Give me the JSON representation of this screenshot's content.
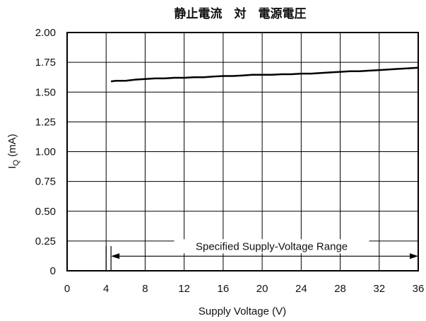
{
  "chart_data": {
    "type": "line",
    "title": "静止電流　対　電源電圧",
    "xlabel": "Supply Voltage (V)",
    "ylabel_main": "I",
    "ylabel_sub": "Q",
    "ylabel_unit": " (mA)",
    "xlim": [
      0,
      36
    ],
    "ylim": [
      0,
      2.0
    ],
    "x_ticks": [
      0,
      4,
      8,
      12,
      16,
      20,
      24,
      28,
      32,
      36
    ],
    "x_tick_labels": [
      "0",
      "4",
      "8",
      "12",
      "16",
      "20",
      "24",
      "28",
      "32",
      "36"
    ],
    "y_ticks": [
      0,
      0.25,
      0.5,
      0.75,
      1.0,
      1.25,
      1.5,
      1.75,
      2.0
    ],
    "y_tick_labels": [
      "0",
      "0.25",
      "0.50",
      "0.75",
      "1.00",
      "1.25",
      "1.50",
      "1.75",
      "2.00"
    ],
    "grid": true,
    "series": [
      {
        "x": [
          4.5,
          5.0,
          6.0,
          7.0,
          8.0,
          9.0,
          10.0,
          11.0,
          12.0,
          13.0,
          14.0,
          15.0,
          16.0,
          17.0,
          18.0,
          19.0,
          20.0,
          21.0,
          22.0,
          23.0,
          24.0,
          25.0,
          26.0,
          27.0,
          28.0,
          29.0,
          30.0,
          31.0,
          32.0,
          33.0,
          34.0,
          35.0,
          36.0
        ],
        "values": [
          1.59,
          1.595,
          1.595,
          1.605,
          1.61,
          1.615,
          1.615,
          1.62,
          1.62,
          1.625,
          1.625,
          1.63,
          1.635,
          1.635,
          1.64,
          1.645,
          1.645,
          1.645,
          1.65,
          1.65,
          1.655,
          1.655,
          1.66,
          1.665,
          1.67,
          1.675,
          1.675,
          1.68,
          1.685,
          1.69,
          1.695,
          1.7,
          1.705
        ]
      }
    ],
    "annotation": {
      "text": "Specified Supply-Voltage Range",
      "x_start": 4.5,
      "x_end": 36,
      "y": 0.2
    },
    "marker_lines": [
      4.0,
      4.5
    ]
  }
}
